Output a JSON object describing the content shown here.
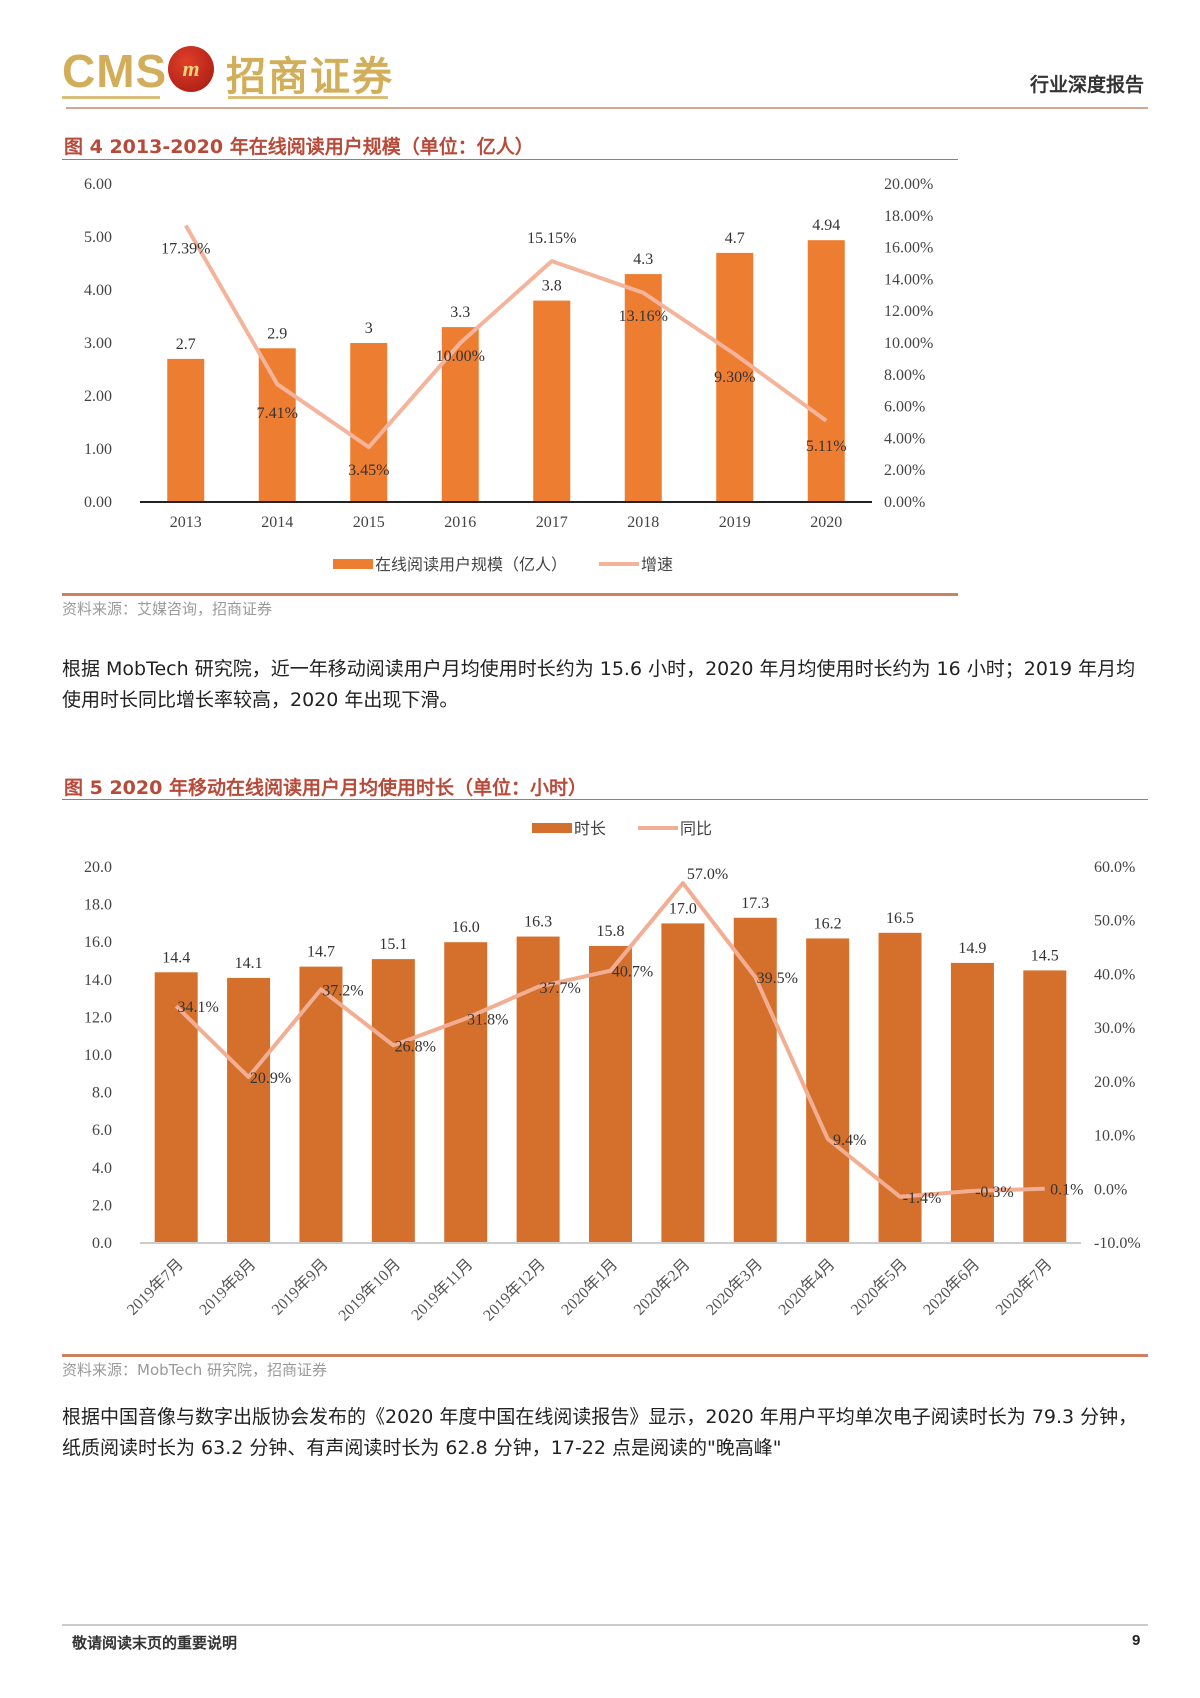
{
  "header": {
    "logo_text": "CMS",
    "logo_emblem": "m",
    "logo_cn": "招商证券",
    "report_type": "行业深度报告"
  },
  "figure4": {
    "title": "图 4 2013-2020 年在线阅读用户规模（单位：亿人）",
    "source": "资料来源：艾媒咨询，招商证券"
  },
  "paragraph1": "根据 MobTech 研究院，近一年移动阅读用户月均使用时长约为 15.6 小时，2020 年月均使用时长约为 16 小时；2019 年月均使用时长同比增长率较高，2020 年出现下滑。",
  "figure5": {
    "title": "图 5 2020 年移动在线阅读用户月均使用时长（单位：小时）",
    "source": "资料来源：MobTech 研究院，招商证券"
  },
  "paragraph2": "根据中国音像与数字出版协会发布的《2020 年度中国在线阅读报告》显示，2020 年用户平均单次电子阅读时长为 79.3 分钟，纸质阅读时长为 63.2 分钟、有声阅读时长为 62.8 分钟，17-22 点是阅读的\"晚高峰\"",
  "footer": {
    "note": "敬请阅读末页的重要说明",
    "page": "9"
  },
  "chart_data": [
    {
      "type": "bar+line",
      "categories": [
        "2013",
        "2014",
        "2015",
        "2016",
        "2017",
        "2018",
        "2019",
        "2020"
      ],
      "series": [
        {
          "name": "在线阅读用户规模（亿人）",
          "type": "bar",
          "axis": "left",
          "color": "#ED7D31",
          "values": [
            2.7,
            2.9,
            3,
            3.3,
            3.8,
            4.3,
            4.7,
            4.94
          ],
          "labels": [
            "2.7",
            "2.9",
            "3",
            "3.3",
            "3.8",
            "4.3",
            "4.7",
            "4.94"
          ]
        },
        {
          "name": "增速",
          "type": "line",
          "axis": "right",
          "color": "#F4B49C",
          "values": [
            17.39,
            7.41,
            3.45,
            10.0,
            15.15,
            13.16,
            9.3,
            5.11
          ],
          "labels": [
            "17.39%",
            "7.41%",
            "3.45%",
            "10.00%",
            "15.15%",
            "13.16%",
            "9.30%",
            "5.11%"
          ]
        }
      ],
      "ylim_left": [
        0,
        6
      ],
      "yticks_left": [
        "0.00",
        "1.00",
        "2.00",
        "3.00",
        "4.00",
        "5.00",
        "6.00"
      ],
      "ylim_right": [
        0,
        20
      ],
      "yticks_right": [
        "0.00%",
        "2.00%",
        "4.00%",
        "6.00%",
        "8.00%",
        "10.00%",
        "12.00%",
        "14.00%",
        "16.00%",
        "18.00%",
        "20.00%"
      ],
      "legend": "bottom",
      "grid": false
    },
    {
      "type": "bar+line",
      "categories": [
        "2019年7月",
        "2019年8月",
        "2019年9月",
        "2019年10月",
        "2019年11月",
        "2019年12月",
        "2020年1月",
        "2020年2月",
        "2020年3月",
        "2020年4月",
        "2020年5月",
        "2020年6月",
        "2020年7月"
      ],
      "series": [
        {
          "name": "时长",
          "type": "bar",
          "axis": "left",
          "color": "#D4702C",
          "values": [
            14.4,
            14.1,
            14.7,
            15.1,
            16.0,
            16.3,
            15.8,
            17.0,
            17.3,
            16.2,
            16.5,
            14.9,
            14.5
          ],
          "labels": [
            "14.4",
            "14.1",
            "14.7",
            "15.1",
            "16.0",
            "16.3",
            "15.8",
            "17.0",
            "17.3",
            "16.2",
            "16.5",
            "14.9",
            "14.5"
          ]
        },
        {
          "name": "同比",
          "type": "line",
          "axis": "right",
          "color": "#F2AE92",
          "values": [
            34.1,
            20.9,
            37.2,
            26.8,
            31.8,
            37.7,
            40.7,
            57.0,
            39.5,
            9.4,
            -1.4,
            -0.3,
            0.1
          ],
          "labels": [
            "34.1%",
            "20.9%",
            "37.2%",
            "26.8%",
            "31.8%",
            "37.7%",
            "40.7%",
            "57.0%",
            "39.5%",
            "9.4%",
            "-1.4%",
            "-0.3%",
            "0.1%"
          ]
        }
      ],
      "ylim_left": [
        0,
        20
      ],
      "yticks_left": [
        "0.0",
        "2.0",
        "4.0",
        "6.0",
        "8.0",
        "10.0",
        "12.0",
        "14.0",
        "16.0",
        "18.0",
        "20.0"
      ],
      "ylim_right": [
        -10,
        60
      ],
      "yticks_right": [
        "-10.0%",
        "0.0%",
        "10.0%",
        "20.0%",
        "30.0%",
        "40.0%",
        "50.0%",
        "60.0%"
      ],
      "legend": "top",
      "grid": false
    }
  ]
}
